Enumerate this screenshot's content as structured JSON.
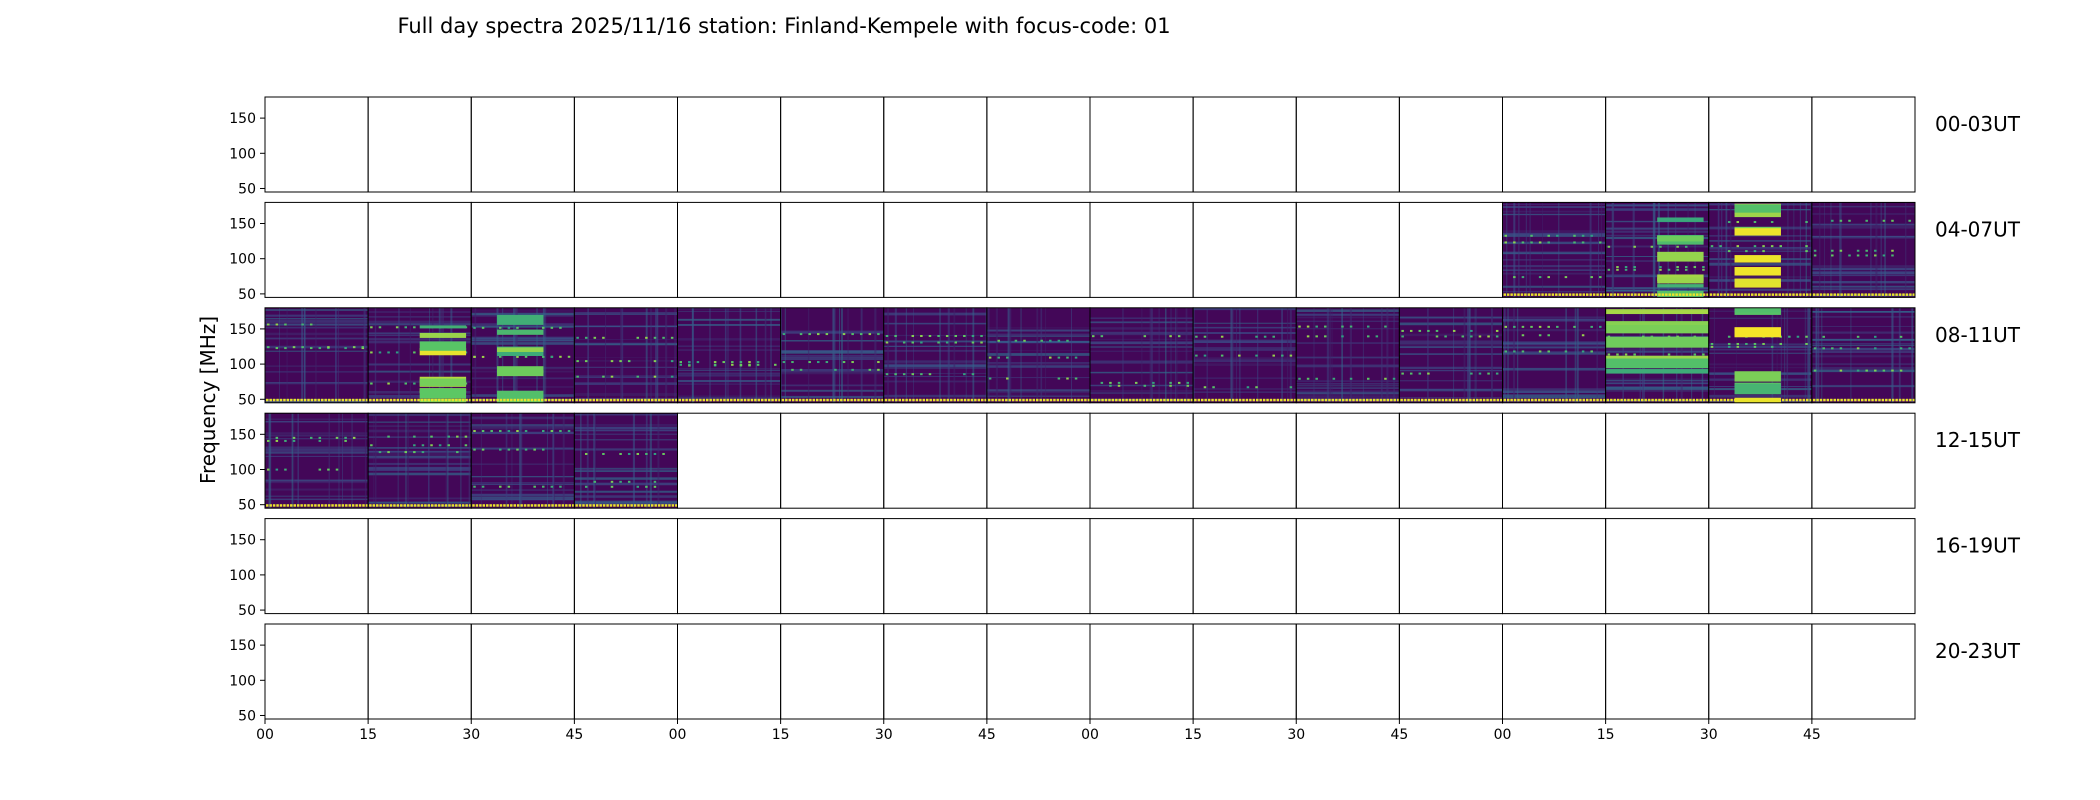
{
  "chart_data": {
    "type": "heatmap",
    "title": "Full day spectra 2025/11/16 station: Finland-Kempele with focus-code: 01",
    "ylabel": "Frequency [MHz]",
    "ylim": [
      45,
      180
    ],
    "yticks": [
      50,
      100,
      150
    ],
    "xticks": [
      "00",
      "15",
      "30",
      "45",
      "00",
      "15",
      "30",
      "45",
      "00",
      "15",
      "30",
      "45",
      "00",
      "15",
      "30",
      "45"
    ],
    "rows": [
      {
        "label": "00-03UT",
        "data_panels": []
      },
      {
        "label": "04-07UT",
        "data_panels": [
          12,
          13,
          14,
          15
        ]
      },
      {
        "label": "08-11UT",
        "data_panels": [
          0,
          1,
          2,
          3,
          4,
          5,
          6,
          7,
          8,
          9,
          10,
          11,
          12,
          13,
          14,
          15
        ]
      },
      {
        "label": "12-15UT",
        "data_panels": [
          0,
          1,
          2,
          3
        ]
      },
      {
        "label": "16-19UT",
        "data_panels": []
      },
      {
        "label": "20-23UT",
        "data_panels": []
      }
    ],
    "colormap": [
      "#440154",
      "#3b528b",
      "#21918c",
      "#5ec962",
      "#fde725"
    ]
  }
}
